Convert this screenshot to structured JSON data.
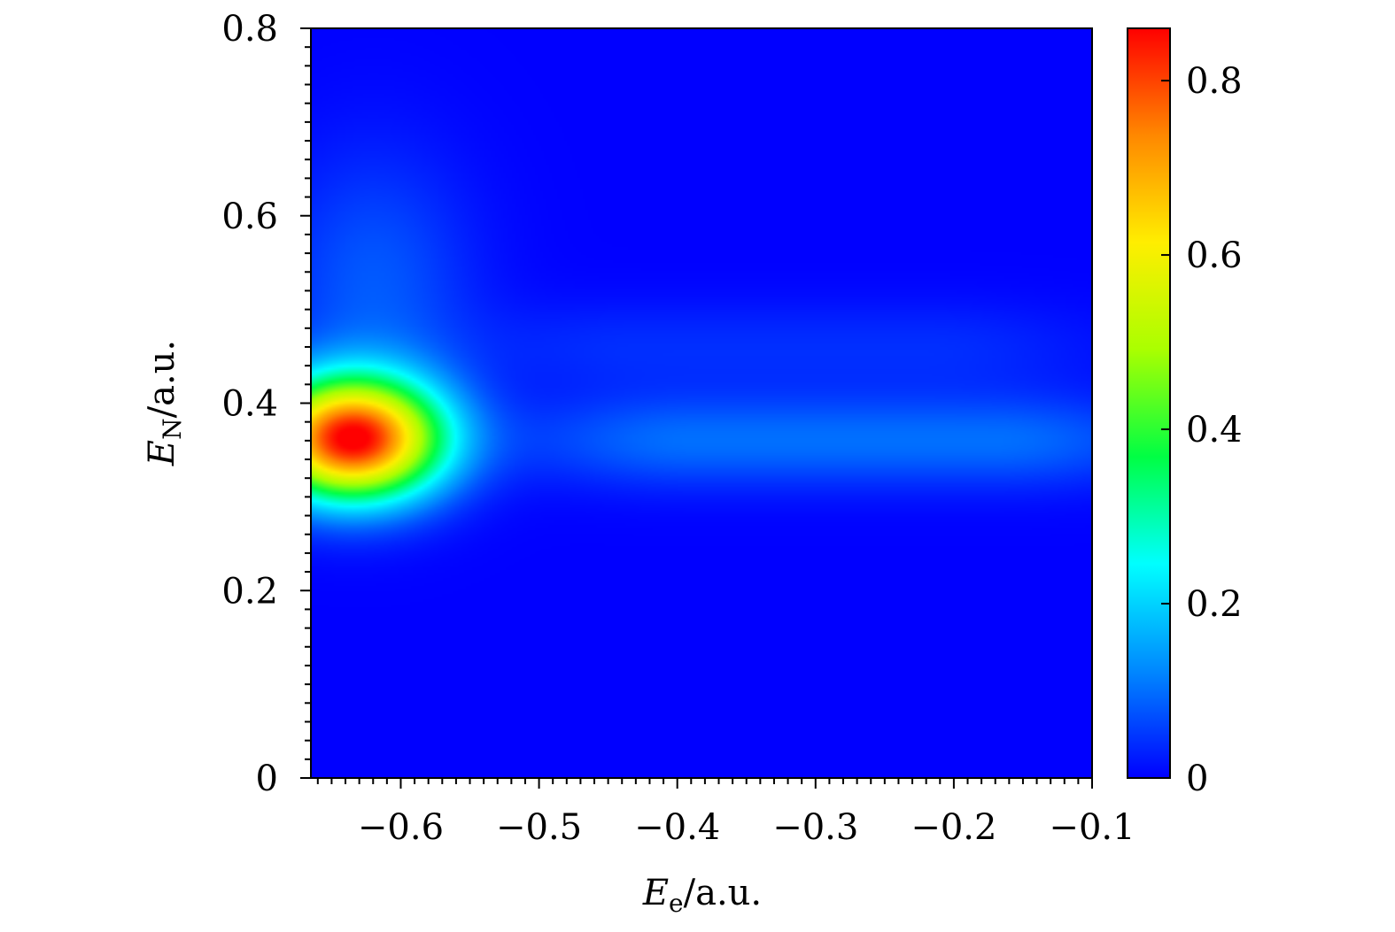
{
  "chart_data": {
    "type": "heatmap",
    "title": "",
    "xlabel": {
      "var": "E",
      "sub": "e",
      "unit": "/a.u."
    },
    "ylabel": {
      "var": "E",
      "sub": "N",
      "unit": "/a.u."
    },
    "xlim": [
      -0.665,
      -0.1
    ],
    "ylim": [
      0,
      0.8
    ],
    "x_ticks": [
      -0.6,
      -0.5,
      -0.4,
      -0.3,
      -0.2,
      -0.1
    ],
    "x_tick_labels": [
      "−0.6",
      "−0.5",
      "−0.4",
      "−0.3",
      "−0.2",
      "−0.1"
    ],
    "y_ticks": [
      0,
      0.2,
      0.4,
      0.6,
      0.8
    ],
    "y_tick_labels": [
      "0",
      "0.2",
      "0.4",
      "0.6",
      "0.8"
    ],
    "colorbar": {
      "range": [
        0,
        0.86
      ],
      "ticks": [
        0,
        0.2,
        0.4,
        0.6,
        0.8
      ],
      "tick_labels": [
        "0",
        "0.2",
        "0.4",
        "0.6",
        "0.8"
      ],
      "colormap": [
        "#0000ff",
        "#0088ff",
        "#00ffff",
        "#00ff44",
        "#aaff00",
        "#ffee00",
        "#ff8800",
        "#ff0000"
      ]
    },
    "features": [
      {
        "type": "peak",
        "x": -0.635,
        "y": 0.362,
        "value": 0.86
      },
      {
        "type": "ridge",
        "x_range": [
          -0.66,
          -0.58
        ],
        "y_range": [
          0.4,
          0.65
        ],
        "value": 0.08
      },
      {
        "type": "band",
        "x_range": [
          -0.46,
          -0.1
        ],
        "y": 0.36,
        "value": 0.1
      },
      {
        "type": "band",
        "x_range": [
          -0.5,
          -0.15
        ],
        "y": 0.46,
        "value": 0.04
      }
    ]
  }
}
